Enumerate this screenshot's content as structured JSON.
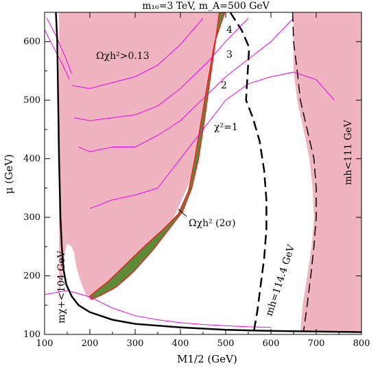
{
  "chart_data": {
    "type": "contour",
    "title": "m₁₆=3 TeV,  m_A=500 GeV",
    "xlabel": "M1/2 (GeV)",
    "ylabel": "μ (GeV)",
    "xlim": [
      100,
      800
    ],
    "ylim": [
      100,
      650
    ],
    "xticks": [
      100,
      200,
      300,
      400,
      500,
      600,
      700,
      800
    ],
    "yticks": [
      100,
      200,
      300,
      400,
      500,
      600
    ],
    "colors": {
      "excluded": "#f0b4c0",
      "chi2": "#ee00ee",
      "relic_band": "#5d8a36",
      "relic_edge": "#e8201e",
      "black": "#000000"
    },
    "regions": {
      "left_excluded": [
        [
          132,
          650
        ],
        [
          490,
          650
        ],
        [
          470,
          560
        ],
        [
          450,
          460
        ],
        [
          420,
          360
        ],
        [
          380,
          290
        ],
        [
          330,
          235
        ],
        [
          290,
          200
        ],
        [
          250,
          175
        ],
        [
          215,
          165
        ],
        [
          200,
          158
        ],
        [
          190,
          170
        ],
        [
          180,
          190
        ],
        [
          170,
          215
        ],
        [
          165,
          240
        ],
        [
          160,
          250
        ],
        [
          150,
          255
        ],
        [
          145,
          240
        ],
        [
          140,
          210
        ],
        [
          135,
          180
        ],
        [
          132,
          150
        ]
      ],
      "right_excluded": [
        [
          650,
          650
        ],
        [
          800,
          650
        ],
        [
          800,
          104
        ],
        [
          665,
          104
        ],
        [
          670,
          150
        ],
        [
          680,
          200
        ],
        [
          690,
          250
        ],
        [
          695,
          300
        ],
        [
          692,
          350
        ],
        [
          685,
          400
        ],
        [
          672,
          450
        ],
        [
          658,
          500
        ],
        [
          650,
          550
        ],
        [
          650,
          600
        ]
      ]
    },
    "relic_band": [
      [
        486,
        650
      ],
      [
        470,
        560
      ],
      [
        452,
        460
      ],
      [
        440,
        400
      ],
      [
        425,
        350
      ],
      [
        405,
        310
      ],
      [
        380,
        285
      ],
      [
        340,
        245
      ],
      [
        300,
        210
      ],
      [
        260,
        182
      ],
      [
        225,
        167
      ],
      [
        204,
        160
      ],
      [
        200,
        165
      ],
      [
        212,
        173
      ],
      [
        240,
        190
      ],
      [
        280,
        220
      ],
      [
        320,
        250
      ],
      [
        360,
        278
      ],
      [
        395,
        305
      ],
      [
        418,
        345
      ],
      [
        432,
        400
      ],
      [
        445,
        460
      ],
      [
        458,
        520
      ],
      [
        476,
        600
      ],
      [
        498,
        650
      ]
    ],
    "series": [
      {
        "name": "χ²=1",
        "points": [
          [
            100,
            168
          ],
          [
            150,
            175
          ],
          [
            200,
            164
          ],
          [
            250,
            145
          ],
          [
            300,
            132
          ],
          [
            350,
            125
          ],
          [
            400,
            120
          ],
          [
            450,
            117
          ],
          [
            500,
            115
          ],
          [
            550,
            113
          ],
          [
            600,
            112
          ]
        ]
      },
      {
        "name": "χ²=1",
        "points": [
          [
            200,
            315
          ],
          [
            250,
            330
          ],
          [
            300,
            338
          ],
          [
            350,
            350
          ],
          [
            400,
            400
          ],
          [
            460,
            460
          ],
          [
            500,
            500
          ],
          [
            550,
            528
          ],
          [
            600,
            540
          ],
          [
            650,
            548
          ],
          [
            700,
            535
          ],
          [
            740,
            500
          ]
        ]
      },
      {
        "name": "2",
        "points": [
          [
            175,
            420
          ],
          [
            200,
            412
          ],
          [
            250,
            420
          ],
          [
            300,
            420
          ],
          [
            350,
            440
          ],
          [
            400,
            465
          ],
          [
            460,
            510
          ],
          [
            500,
            540
          ],
          [
            550,
            570
          ],
          [
            600,
            600
          ],
          [
            650,
            640
          ]
        ]
      },
      {
        "name": "3",
        "points": [
          [
            165,
            470
          ],
          [
            200,
            465
          ],
          [
            250,
            470
          ],
          [
            300,
            475
          ],
          [
            350,
            490
          ],
          [
            400,
            520
          ],
          [
            460,
            565
          ],
          [
            500,
            600
          ],
          [
            550,
            640
          ]
        ]
      },
      {
        "name": "4",
        "points": [
          [
            160,
            525
          ],
          [
            200,
            520
          ],
          [
            250,
            530
          ],
          [
            300,
            540
          ],
          [
            350,
            560
          ],
          [
            400,
            595
          ],
          [
            450,
            640
          ]
        ]
      },
      {
        "name": "",
        "points": [
          [
            100,
            620
          ],
          [
            120,
            590
          ],
          [
            140,
            560
          ],
          [
            155,
            535
          ]
        ]
      },
      {
        "name": "",
        "points": [
          [
            105,
            640
          ],
          [
            125,
            610
          ],
          [
            145,
            575
          ],
          [
            160,
            545
          ]
        ]
      }
    ],
    "lines": {
      "chargino": [
        [
          125,
          650
        ],
        [
          128,
          600
        ],
        [
          130,
          500
        ],
        [
          132,
          400
        ],
        [
          135,
          300
        ],
        [
          138,
          250
        ],
        [
          142,
          210
        ],
        [
          148,
          185
        ],
        [
          160,
          165
        ],
        [
          175,
          150
        ],
        [
          200,
          138
        ],
        [
          250,
          125
        ],
        [
          300,
          118
        ],
        [
          400,
          112
        ],
        [
          500,
          108
        ],
        [
          600,
          106
        ],
        [
          700,
          105
        ],
        [
          800,
          104
        ]
      ],
      "higgs_114": [
        [
          510,
          650
        ],
        [
          535,
          620
        ],
        [
          552,
          590
        ],
        [
          548,
          540
        ],
        [
          545,
          500
        ],
        [
          560,
          470
        ],
        [
          575,
          430
        ],
        [
          585,
          380
        ],
        [
          590,
          330
        ],
        [
          590,
          280
        ],
        [
          585,
          230
        ],
        [
          580,
          200
        ],
        [
          575,
          170
        ],
        [
          570,
          140
        ],
        [
          562,
          104
        ]
      ],
      "higgs_111": [
        [
          648,
          650
        ],
        [
          650,
          600
        ],
        [
          658,
          550
        ],
        [
          665,
          500
        ],
        [
          680,
          450
        ],
        [
          695,
          400
        ],
        [
          700,
          350
        ],
        [
          700,
          300
        ],
        [
          695,
          250
        ],
        [
          688,
          200
        ],
        [
          680,
          150
        ],
        [
          672,
          104
        ]
      ]
    },
    "annotations": {
      "relic_excluded": "Ωχh²>0.13",
      "relic_band": "Ωχh² (2σ)",
      "chi2_1": "χ²=1",
      "chi2_2": "2",
      "chi2_3": "3",
      "chi2_4": "4",
      "higgs_114": "mh=114.4 GeV",
      "higgs_111": "mh<111 GeV",
      "chargino": "mχ+<104 GeV"
    }
  }
}
